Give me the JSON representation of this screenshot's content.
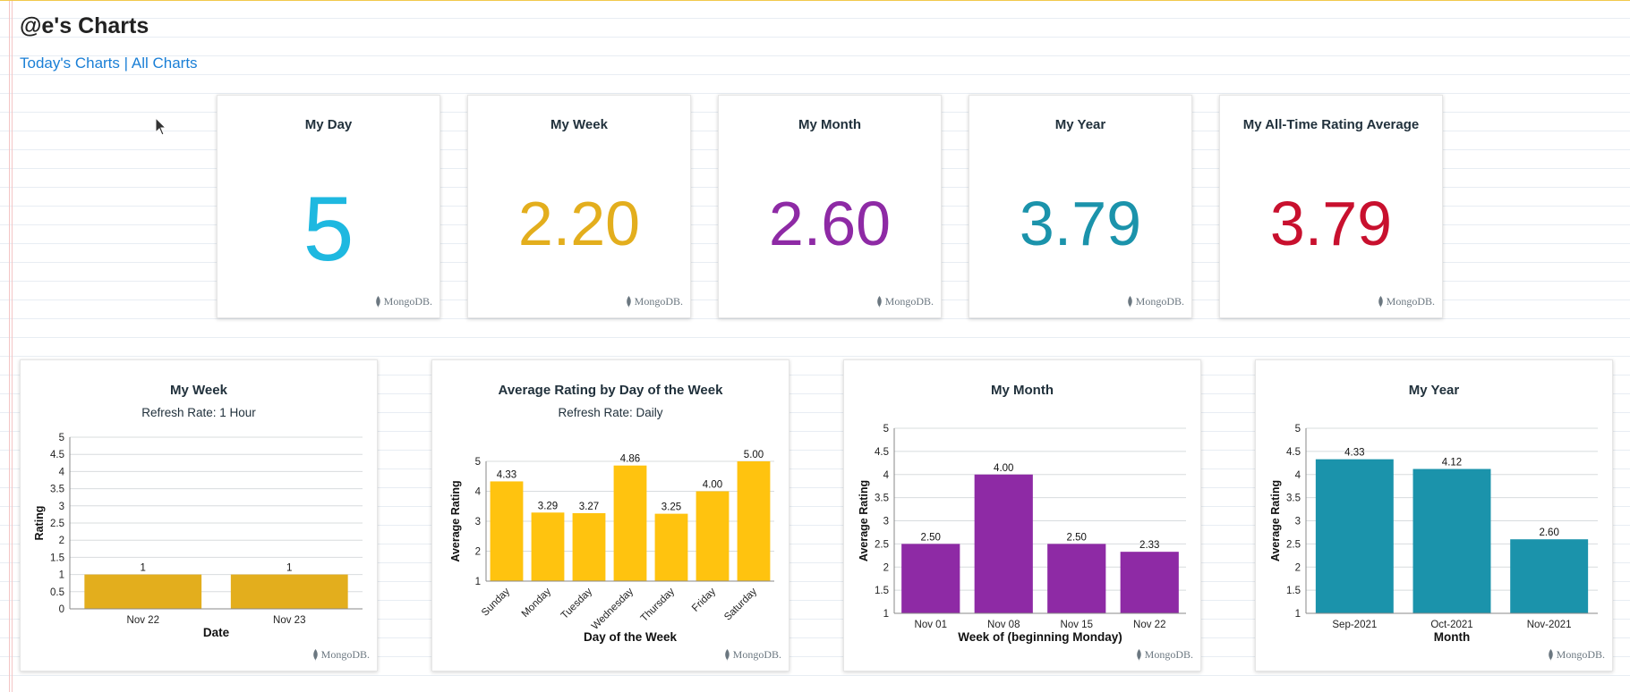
{
  "page": {
    "title": "@e's Charts",
    "nav": {
      "today": "Today's Charts",
      "separator": "|",
      "all": "All Charts"
    },
    "watermark": "MongoDB."
  },
  "kpis": [
    {
      "title": "My Day",
      "value": "5",
      "color": "#1eb8e0"
    },
    {
      "title": "My Week",
      "value": "2.20",
      "color": "#e3ae1d"
    },
    {
      "title": "My Month",
      "value": "2.60",
      "color": "#8e2aa5"
    },
    {
      "title": "My Year",
      "value": "3.79",
      "color": "#1b93ab"
    },
    {
      "title": "My All-Time Rating Average",
      "value": "3.79",
      "color": "#c8102e"
    }
  ],
  "chart_data": [
    {
      "type": "bar",
      "title": "My Week",
      "subtitle": "Refresh Rate: 1 Hour",
      "categories": [
        "Nov 22",
        "Nov 23"
      ],
      "values": [
        1,
        1
      ],
      "value_labels": [
        "1",
        "1"
      ],
      "xlabel": "Date",
      "ylabel": "Rating",
      "ylim": [
        0,
        5
      ],
      "yticks": [
        0,
        0.5,
        1,
        1.5,
        2,
        2.5,
        3,
        3.5,
        4,
        4.5,
        5
      ],
      "ytick_labels": [
        "0",
        "0.5",
        "1",
        "1.5",
        "2",
        "2.5",
        "3",
        "3.5",
        "4",
        "4.5",
        "5"
      ],
      "color": "#e3ae1d",
      "rotate_x": false
    },
    {
      "type": "bar",
      "title": "Average Rating by Day of the Week",
      "subtitle": "Refresh Rate: Daily",
      "categories": [
        "Sunday",
        "Monday",
        "Tuesday",
        "Wednesday",
        "Thursday",
        "Friday",
        "Saturday"
      ],
      "values": [
        4.33,
        3.29,
        3.27,
        4.86,
        3.25,
        4.0,
        5.0
      ],
      "value_labels": [
        "4.33",
        "3.29",
        "3.27",
        "4.86",
        "3.25",
        "4.00",
        "5.00"
      ],
      "xlabel": "Day of the Week",
      "ylabel": "Average Rating",
      "ylim": [
        1,
        5
      ],
      "yticks": [
        1,
        2,
        3,
        4,
        5
      ],
      "ytick_labels": [
        "1",
        "2",
        "3",
        "4",
        "5"
      ],
      "color": "#ffc30f",
      "rotate_x": true
    },
    {
      "type": "bar",
      "title": "My Month",
      "subtitle": "",
      "categories": [
        "Nov 01",
        "Nov 08",
        "Nov 15",
        "Nov 22"
      ],
      "values": [
        2.5,
        4.0,
        2.5,
        2.33
      ],
      "value_labels": [
        "2.50",
        "4.00",
        "2.50",
        "2.33"
      ],
      "xlabel": "Week of (beginning Monday)",
      "ylabel": "Average Rating",
      "ylim": [
        1,
        5
      ],
      "yticks": [
        1,
        1.5,
        2,
        2.5,
        3,
        3.5,
        4,
        4.5,
        5
      ],
      "ytick_labels": [
        "1",
        "1.5",
        "2",
        "2.5",
        "3",
        "3.5",
        "4",
        "4.5",
        "5"
      ],
      "color": "#8e2aa5",
      "rotate_x": false
    },
    {
      "type": "bar",
      "title": "My Year",
      "subtitle": "",
      "categories": [
        "Sep-2021",
        "Oct-2021",
        "Nov-2021"
      ],
      "values": [
        4.33,
        4.12,
        2.6
      ],
      "value_labels": [
        "4.33",
        "4.12",
        "2.60"
      ],
      "xlabel": "Month",
      "ylabel": "Average Rating",
      "ylim": [
        1,
        5
      ],
      "yticks": [
        1,
        1.5,
        2,
        2.5,
        3,
        3.5,
        4,
        4.5,
        5
      ],
      "ytick_labels": [
        "1",
        "1.5",
        "2",
        "2.5",
        "3",
        "3.5",
        "4",
        "4.5",
        "5"
      ],
      "color": "#1b93ab",
      "rotate_x": false
    }
  ]
}
